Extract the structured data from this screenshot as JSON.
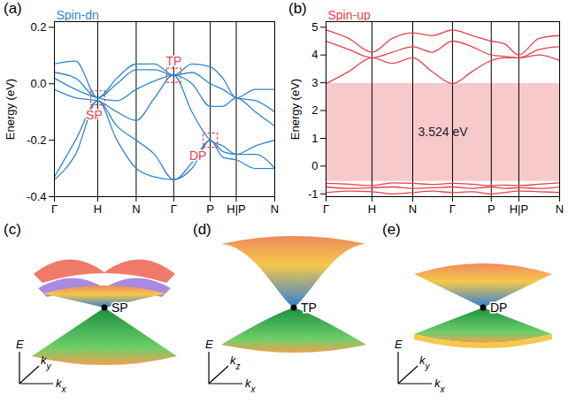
{
  "chart_data": [
    {
      "panel": "(a)",
      "type": "line",
      "title": "Spin-dn",
      "ylabel": "Energy (eV)",
      "color": "#2f86d1",
      "grid": "x",
      "x": [
        0,
        22,
        45,
        65,
        85,
        104,
        124,
        143,
        162,
        175,
        189,
        209,
        229
      ],
      "xlim": [
        0,
        229
      ],
      "xticks": [
        {
          "value": 0,
          "label": "Γ"
        },
        {
          "value": 45,
          "label": "H"
        },
        {
          "value": 85,
          "label": "N"
        },
        {
          "value": 124,
          "label": "Γ"
        },
        {
          "value": 162,
          "label": "P"
        },
        {
          "value": 189,
          "label": "H|P"
        },
        {
          "value": 229,
          "label": "N"
        }
      ],
      "ylim": [
        -0.4,
        0.22
      ],
      "yticks": [
        -0.4,
        -0.2,
        {
          "value": 0,
          "label": "0.0"
        },
        0.2
      ],
      "series": [
        {
          "values": [
            0.07,
            0.08,
            -0.05,
            0.02,
            0.07,
            0.07,
            0.03,
            0.07,
            0.06,
            0.02,
            -0.05,
            -0.02,
            -0.02
          ]
        },
        {
          "values": [
            0.04,
            0.02,
            -0.05,
            0.0,
            0.05,
            0.05,
            0.03,
            0.04,
            0.0,
            -0.02,
            -0.05,
            -0.06,
            -0.1
          ]
        },
        {
          "values": [
            0.02,
            -0.02,
            -0.05,
            -0.06,
            -0.02,
            0.01,
            0.03,
            0.0,
            -0.08,
            -0.08,
            -0.05,
            -0.1,
            -0.15
          ]
        },
        {
          "values": [
            -0.02,
            -0.05,
            -0.06,
            -0.1,
            -0.13,
            -0.05,
            0.03,
            -0.1,
            -0.2,
            -0.22,
            -0.25,
            -0.22,
            -0.2
          ]
        },
        {
          "values": [
            -0.33,
            -0.2,
            -0.06,
            -0.15,
            -0.2,
            -0.25,
            -0.34,
            -0.28,
            -0.2,
            -0.24,
            -0.25,
            -0.25,
            -0.3
          ]
        },
        {
          "values": [
            -0.34,
            -0.25,
            -0.06,
            -0.2,
            -0.3,
            -0.33,
            -0.34,
            -0.3,
            -0.2,
            -0.26,
            -0.27,
            -0.3,
            -0.3
          ]
        }
      ],
      "annotations": [
        {
          "text": "SP",
          "x": 45,
          "y": -0.05
        },
        {
          "text": "TP",
          "x": 124,
          "y": 0.03
        },
        {
          "text": "DP",
          "x": 162,
          "y": -0.2
        }
      ]
    },
    {
      "panel": "(b)",
      "type": "line",
      "title": "Spin-up",
      "ylabel": "Energy (eV)",
      "color": "#e8404a",
      "grid": "x",
      "x": [
        0,
        22,
        45,
        65,
        85,
        104,
        124,
        143,
        162,
        175,
        189,
        209,
        229
      ],
      "xlim": [
        0,
        229
      ],
      "xticks": [
        {
          "value": 0,
          "label": "Γ"
        },
        {
          "value": 45,
          "label": "H"
        },
        {
          "value": 85,
          "label": "N"
        },
        {
          "value": 124,
          "label": "Γ"
        },
        {
          "value": 162,
          "label": "P"
        },
        {
          "value": 189,
          "label": "H|P"
        },
        {
          "value": 229,
          "label": "N"
        }
      ],
      "ylim": [
        -1.1,
        5.2
      ],
      "yticks": [
        -1,
        0,
        1,
        2,
        3,
        4,
        5
      ],
      "gap": [
        -0.55,
        2.974
      ],
      "gap_label": "3.524 eV",
      "series": [
        {
          "values": [
            2.97,
            3.4,
            3.9,
            3.7,
            3.9,
            3.4,
            2.97,
            3.4,
            3.8,
            3.9,
            3.9,
            4.0,
            3.8
          ]
        },
        {
          "values": [
            4.5,
            4.2,
            3.9,
            4.1,
            4.3,
            4.1,
            4.5,
            4.3,
            4.0,
            3.95,
            3.9,
            4.2,
            4.3
          ]
        },
        {
          "values": [
            4.9,
            4.6,
            4.1,
            4.6,
            4.8,
            4.7,
            4.9,
            4.7,
            4.5,
            4.4,
            4.0,
            4.6,
            4.7
          ]
        },
        {
          "values": [
            -0.62,
            -0.65,
            -0.7,
            -0.6,
            -0.62,
            -0.66,
            -0.62,
            -0.65,
            -0.7,
            -0.68,
            -0.7,
            -0.65,
            -0.6
          ]
        },
        {
          "values": [
            -0.75,
            -0.8,
            -0.78,
            -0.75,
            -0.8,
            -0.78,
            -0.75,
            -0.8,
            -0.75,
            -0.8,
            -0.78,
            -0.8,
            -0.75
          ]
        },
        {
          "values": [
            -0.95,
            -0.9,
            -0.92,
            -1.0,
            -0.95,
            -0.9,
            -0.95,
            -0.92,
            -1.0,
            -0.95,
            -0.9,
            -0.92,
            -0.95
          ]
        }
      ]
    }
  ],
  "schematics": [
    {
      "panel": "(c)",
      "point": "SP",
      "axes": [
        {
          "base": "E"
        },
        {
          "base": "k",
          "sub": "y"
        },
        {
          "base": "k",
          "sub": "x"
        }
      ]
    },
    {
      "panel": "(d)",
      "point": "TP",
      "axes": [
        {
          "base": "E"
        },
        {
          "base": "k",
          "sub": "z"
        },
        {
          "base": "k",
          "sub": "x"
        }
      ]
    },
    {
      "panel": "(e)",
      "point": "DP",
      "axes": [
        {
          "base": "E"
        },
        {
          "base": "k",
          "sub": "y"
        },
        {
          "base": "k",
          "sub": "x"
        }
      ]
    }
  ]
}
